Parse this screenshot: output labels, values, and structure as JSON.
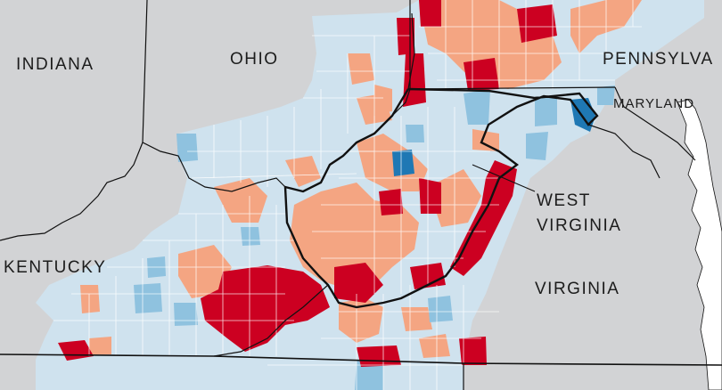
{
  "map": {
    "labels": {
      "indiana": "INDIANA",
      "ohio": "OHIO",
      "pennsylvania": "PENNSYLVA",
      "maryland": "MARYLAND",
      "kentucky": "KENTUCKY",
      "west_virginia_line1": "WEST",
      "west_virginia_line2": "VIRGINIA",
      "virginia": "VIRGINIA"
    },
    "colors": {
      "background": "#d2d3d5",
      "county_light_blue": "#cfe2ee",
      "county_mid_blue": "#8fc2df",
      "county_dark_blue": "#1f78b4",
      "county_light_red": "#f4a582",
      "county_dark_red": "#cc0021",
      "state_border": "#111111",
      "county_border": "#ffffff",
      "water": "#ffffff"
    }
  }
}
